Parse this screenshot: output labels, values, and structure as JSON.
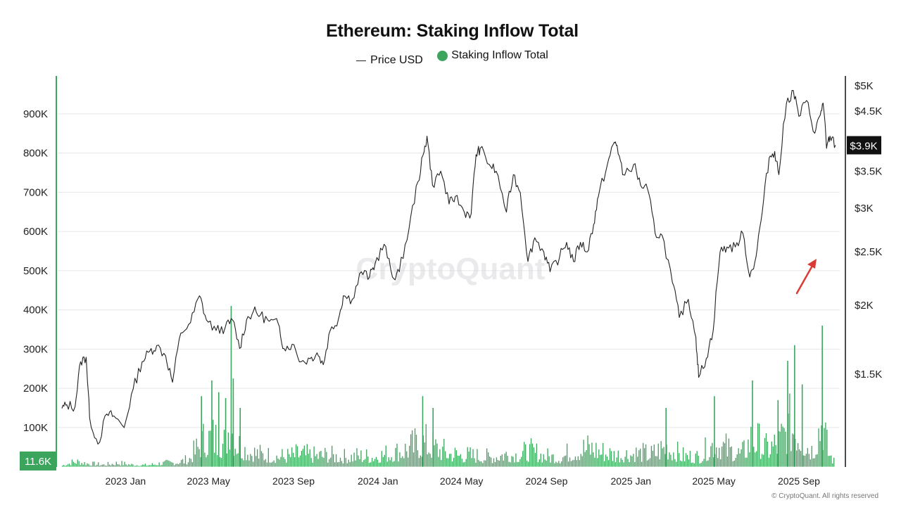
{
  "chart_data": {
    "type": "bar",
    "title": "Ethereum: Staking Inflow Total",
    "legend": {
      "placement": "top-center",
      "items": [
        {
          "label": "Price USD",
          "marker": "line",
          "color": "#222222"
        },
        {
          "label": "Staking Inflow Total",
          "marker": "dot",
          "color": "#3ba55d"
        }
      ]
    },
    "grid": "horizontal",
    "watermark": "CryptoQuant",
    "x_axis": {
      "ticks": [
        "2023 Jan",
        "2023 May",
        "2023 Sep",
        "2024 Jan",
        "2024 May",
        "2024 Sep",
        "2025 Jan",
        "2025 May",
        "2025 Sep"
      ],
      "range": [
        "2022-10-01",
        "2025-10-24"
      ]
    },
    "y_left": {
      "ticks": [
        "100K",
        "200K",
        "300K",
        "400K",
        "500K",
        "600K",
        "700K",
        "800K",
        "900K"
      ],
      "tick_values": [
        100000,
        200000,
        300000,
        400000,
        500000,
        600000,
        700000,
        800000,
        900000
      ],
      "ylim": [
        0,
        1000000
      ],
      "current_value_label": "11.6K"
    },
    "y_right": {
      "scale": "log",
      "ticks": [
        "$1.5K",
        "$2K",
        "$2.5K",
        "$3K",
        "$3.5K",
        "$4.5K",
        "$5K"
      ],
      "tick_values": [
        1500,
        2000,
        2500,
        3000,
        3500,
        4500,
        5000
      ],
      "current_value_label": "$3.9K",
      "current_value": 3900
    },
    "series": [
      {
        "name": "Price USD",
        "type": "line",
        "color": "#222222",
        "axis": "right",
        "points": [
          [
            "2022-10-01",
            1300
          ],
          [
            "2022-10-08",
            1320
          ],
          [
            "2022-10-20",
            1310
          ],
          [
            "2022-10-28",
            1580
          ],
          [
            "2022-11-05",
            1610
          ],
          [
            "2022-11-10",
            1250
          ],
          [
            "2022-11-22",
            1120
          ],
          [
            "2022-12-05",
            1270
          ],
          [
            "2022-12-15",
            1260
          ],
          [
            "2022-12-30",
            1200
          ],
          [
            "2023-01-12",
            1410
          ],
          [
            "2023-01-25",
            1580
          ],
          [
            "2023-02-05",
            1650
          ],
          [
            "2023-02-15",
            1690
          ],
          [
            "2023-02-28",
            1620
          ],
          [
            "2023-03-10",
            1450
          ],
          [
            "2023-03-22",
            1780
          ],
          [
            "2023-04-05",
            1860
          ],
          [
            "2023-04-18",
            2080
          ],
          [
            "2023-04-28",
            1880
          ],
          [
            "2023-05-12",
            1800
          ],
          [
            "2023-05-25",
            1820
          ],
          [
            "2023-06-05",
            1880
          ],
          [
            "2023-06-15",
            1670
          ],
          [
            "2023-06-25",
            1880
          ],
          [
            "2023-07-05",
            1950
          ],
          [
            "2023-07-15",
            1920
          ],
          [
            "2023-07-28",
            1870
          ],
          [
            "2023-08-10",
            1850
          ],
          [
            "2023-08-18",
            1670
          ],
          [
            "2023-08-30",
            1700
          ],
          [
            "2023-09-12",
            1580
          ],
          [
            "2023-09-25",
            1600
          ],
          [
            "2023-10-05",
            1640
          ],
          [
            "2023-10-14",
            1560
          ],
          [
            "2023-10-24",
            1800
          ],
          [
            "2023-11-05",
            1890
          ],
          [
            "2023-11-12",
            2080
          ],
          [
            "2023-11-25",
            2050
          ],
          [
            "2023-12-08",
            2300
          ],
          [
            "2023-12-20",
            2250
          ],
          [
            "2023-12-28",
            2380
          ],
          [
            "2024-01-10",
            2580
          ],
          [
            "2024-01-22",
            2250
          ],
          [
            "2024-02-01",
            2300
          ],
          [
            "2024-02-15",
            2750
          ],
          [
            "2024-02-28",
            3350
          ],
          [
            "2024-03-08",
            3800
          ],
          [
            "2024-03-12",
            4050
          ],
          [
            "2024-03-20",
            3300
          ],
          [
            "2024-04-01",
            3500
          ],
          [
            "2024-04-13",
            3050
          ],
          [
            "2024-04-22",
            3150
          ],
          [
            "2024-05-05",
            2950
          ],
          [
            "2024-05-15",
            2930
          ],
          [
            "2024-05-22",
            3750
          ],
          [
            "2024-05-28",
            3850
          ],
          [
            "2024-06-10",
            3600
          ],
          [
            "2024-06-20",
            3500
          ],
          [
            "2024-07-05",
            2950
          ],
          [
            "2024-07-15",
            3450
          ],
          [
            "2024-07-25",
            3200
          ],
          [
            "2024-08-05",
            2400
          ],
          [
            "2024-08-15",
            2650
          ],
          [
            "2024-08-28",
            2500
          ],
          [
            "2024-09-06",
            2300
          ],
          [
            "2024-09-20",
            2450
          ],
          [
            "2024-09-30",
            2600
          ],
          [
            "2024-10-10",
            2400
          ],
          [
            "2024-10-20",
            2600
          ],
          [
            "2024-10-30",
            2500
          ],
          [
            "2024-11-08",
            2800
          ],
          [
            "2024-11-15",
            3150
          ],
          [
            "2024-11-28",
            3600
          ],
          [
            "2024-12-08",
            3950
          ],
          [
            "2024-12-12",
            3900
          ],
          [
            "2024-12-20",
            3450
          ],
          [
            "2025-01-05",
            3600
          ],
          [
            "2025-01-15",
            3300
          ],
          [
            "2025-01-25",
            3250
          ],
          [
            "2025-02-05",
            2700
          ],
          [
            "2025-02-15",
            2680
          ],
          [
            "2025-03-02",
            2200
          ],
          [
            "2025-03-12",
            1900
          ],
          [
            "2025-03-25",
            2050
          ],
          [
            "2025-04-05",
            1750
          ],
          [
            "2025-04-09",
            1480
          ],
          [
            "2025-04-20",
            1600
          ],
          [
            "2025-04-30",
            1800
          ],
          [
            "2025-05-10",
            2500
          ],
          [
            "2025-05-20",
            2550
          ],
          [
            "2025-06-01",
            2550
          ],
          [
            "2025-06-12",
            2700
          ],
          [
            "2025-06-22",
            2250
          ],
          [
            "2025-07-01",
            2450
          ],
          [
            "2025-07-10",
            2950
          ],
          [
            "2025-07-20",
            3700
          ],
          [
            "2025-07-28",
            3800
          ],
          [
            "2025-08-03",
            3450
          ],
          [
            "2025-08-14",
            4650
          ],
          [
            "2025-08-24",
            4900
          ],
          [
            "2025-09-01",
            4400
          ],
          [
            "2025-09-12",
            4700
          ],
          [
            "2025-09-24",
            4100
          ],
          [
            "2025-10-01",
            4400
          ],
          [
            "2025-10-06",
            4650
          ],
          [
            "2025-10-11",
            3850
          ],
          [
            "2025-10-16",
            4050
          ],
          [
            "2025-10-24",
            3900
          ]
        ]
      },
      {
        "name": "Staking Inflow Total",
        "type": "bar",
        "color": "#3ba55d",
        "axis": "left",
        "points": [
          [
            "2022-10-01",
            10000
          ],
          [
            "2022-10-20",
            40000
          ],
          [
            "2022-11-10",
            22000
          ],
          [
            "2022-12-01",
            15000
          ],
          [
            "2022-12-20",
            28000
          ],
          [
            "2023-01-10",
            15000
          ],
          [
            "2023-02-01",
            12000
          ],
          [
            "2023-02-20",
            25000
          ],
          [
            "2023-03-10",
            30000
          ],
          [
            "2023-04-01",
            50000
          ],
          [
            "2023-04-12",
            120000
          ],
          [
            "2023-04-20",
            180000
          ],
          [
            "2023-05-05",
            220000
          ],
          [
            "2023-05-15",
            190000
          ],
          [
            "2023-05-25",
            175000
          ],
          [
            "2023-06-02",
            410000
          ],
          [
            "2023-06-05",
            225000
          ],
          [
            "2023-06-15",
            150000
          ],
          [
            "2023-07-01",
            110000
          ],
          [
            "2023-07-15",
            90000
          ],
          [
            "2023-08-01",
            80000
          ],
          [
            "2023-08-20",
            75000
          ],
          [
            "2023-09-10",
            95000
          ],
          [
            "2023-09-30",
            80000
          ],
          [
            "2023-10-20",
            85000
          ],
          [
            "2023-11-10",
            70000
          ],
          [
            "2023-12-01",
            80000
          ],
          [
            "2023-12-20",
            75000
          ],
          [
            "2024-01-10",
            90000
          ],
          [
            "2024-01-30",
            110000
          ],
          [
            "2024-02-15",
            140000
          ],
          [
            "2024-03-05",
            180000
          ],
          [
            "2024-03-20",
            150000
          ],
          [
            "2024-04-10",
            100000
          ],
          [
            "2024-05-01",
            85000
          ],
          [
            "2024-05-20",
            80000
          ],
          [
            "2024-06-10",
            70000
          ],
          [
            "2024-07-01",
            95000
          ],
          [
            "2024-07-20",
            90000
          ],
          [
            "2024-08-10",
            110000
          ],
          [
            "2024-09-01",
            75000
          ],
          [
            "2024-09-20",
            70000
          ],
          [
            "2024-10-10",
            120000
          ],
          [
            "2024-11-01",
            140000
          ],
          [
            "2024-11-20",
            110000
          ],
          [
            "2024-12-10",
            85000
          ],
          [
            "2025-01-05",
            100000
          ],
          [
            "2025-01-30",
            90000
          ],
          [
            "2025-02-20",
            150000
          ],
          [
            "2025-03-15",
            80000
          ],
          [
            "2025-04-10",
            70000
          ],
          [
            "2025-05-01",
            180000
          ],
          [
            "2025-05-20",
            130000
          ],
          [
            "2025-06-10",
            90000
          ],
          [
            "2025-06-25",
            220000
          ],
          [
            "2025-07-15",
            130000
          ],
          [
            "2025-08-01",
            170000
          ],
          [
            "2025-08-15",
            270000
          ],
          [
            "2025-08-25",
            310000
          ],
          [
            "2025-09-05",
            210000
          ],
          [
            "2025-09-20",
            120000
          ],
          [
            "2025-10-04",
            360000
          ],
          [
            "2025-10-12",
            120000
          ],
          [
            "2025-10-24",
            11600
          ]
        ]
      }
    ],
    "annotations": [
      {
        "type": "arrow",
        "color": "#d93b35",
        "direction": "up-right",
        "near": "2025-09"
      }
    ]
  },
  "footer": "© CryptoQuant. All rights reserved"
}
